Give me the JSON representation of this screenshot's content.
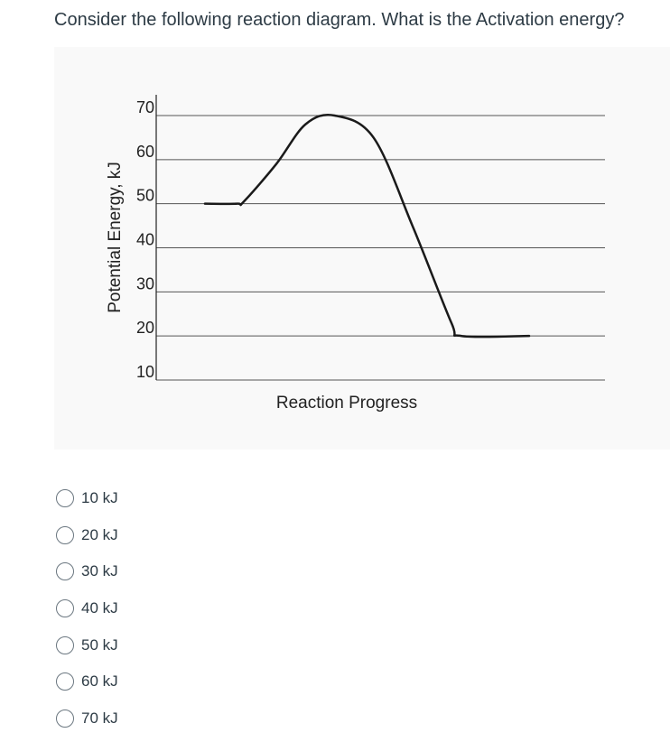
{
  "question": {
    "text": "Consider the following reaction diagram.  What is the Activation energy?"
  },
  "chart_data": {
    "type": "line",
    "ylabel": "Potential Energy, kJ",
    "xlabel": "Reaction Progress",
    "yticks": [
      70,
      60,
      50,
      40,
      30,
      20,
      10
    ],
    "ylim": [
      10,
      70
    ],
    "grid": true,
    "series": [
      {
        "x": [
          0.0,
          0.1,
          0.12,
          0.22,
          0.31,
          0.4,
          0.52,
          0.64,
          0.76,
          0.79,
          1.0
        ],
        "y": [
          50,
          50,
          50.5,
          59,
          68,
          70,
          65,
          45,
          23,
          20,
          20
        ]
      }
    ]
  },
  "answers": {
    "options": [
      {
        "label": "10 kJ"
      },
      {
        "label": "20 kJ"
      },
      {
        "label": "30 kJ"
      },
      {
        "label": "40 kJ"
      },
      {
        "label": "50 kJ"
      },
      {
        "label": "60 kJ"
      },
      {
        "label": "70 kJ"
      }
    ]
  }
}
